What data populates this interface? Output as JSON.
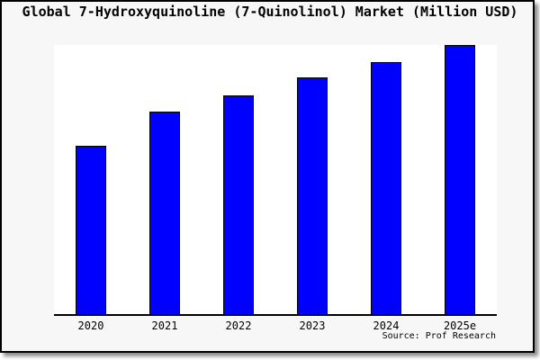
{
  "window": {
    "page_background": "#f7f7f7",
    "frame_border_color": "#000000",
    "shadow_color": "rgba(0,0,0,0.45)"
  },
  "chart_data": {
    "type": "bar",
    "title": "Global 7-Hydroxyquinoline (7-Quinolinol) Market (Million USD)",
    "categories": [
      "2020",
      "2021",
      "2022",
      "2023",
      "2024",
      "2025e"
    ],
    "values": [
      62.7,
      75.1,
      81.3,
      88.1,
      93.6,
      100
    ],
    "values_are_estimated_relative_percent_of_max": true,
    "xlabel": "",
    "ylabel": "",
    "ylim": [
      0,
      100
    ],
    "grid": false,
    "legend": false,
    "bar_color": "#0000ff",
    "bar_edge_color": "#000000",
    "axis_color": "#000000",
    "plot_background": "#ffffff",
    "source_label": "Source: Prof Research"
  }
}
